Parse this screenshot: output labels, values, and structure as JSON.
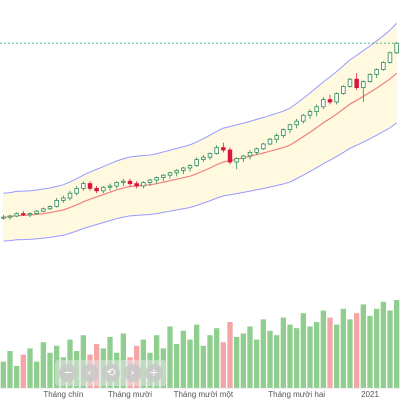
{
  "chart_data": {
    "type": "candlestick",
    "x_tick_labels": [
      "Tháng chín",
      "Tháng mười",
      "Tháng mười một",
      "Tháng mười hai",
      "2021"
    ],
    "series": [
      {
        "ohlc": [
          [
            0,
            22,
            23,
            21,
            22
          ],
          [
            1,
            22,
            23,
            21,
            22.5
          ],
          [
            2,
            22.5,
            24,
            22,
            23.5
          ],
          [
            3,
            23.5,
            24.5,
            22.5,
            23
          ],
          [
            4,
            23,
            24,
            22,
            23.5
          ],
          [
            5,
            23.5,
            25,
            23,
            24.5
          ],
          [
            6,
            24.5,
            26,
            24,
            25.5
          ],
          [
            7,
            25.5,
            27,
            25,
            26.5
          ],
          [
            8,
            26.5,
            30,
            26,
            29
          ],
          [
            9,
            29,
            31,
            28,
            30
          ],
          [
            10,
            30,
            33,
            29,
            32
          ],
          [
            11,
            32,
            35,
            31,
            34
          ],
          [
            12,
            34,
            37,
            33,
            36
          ],
          [
            13,
            36,
            37,
            33,
            34
          ],
          [
            14,
            34,
            35,
            32,
            33
          ],
          [
            15,
            33,
            35,
            32,
            34.5
          ],
          [
            16,
            34.5,
            36,
            33,
            35
          ],
          [
            17,
            35,
            37,
            34,
            36.5
          ],
          [
            18,
            36.5,
            38,
            35,
            37
          ],
          [
            19,
            37,
            38,
            35,
            36
          ],
          [
            20,
            36,
            37,
            34,
            35
          ],
          [
            21,
            35,
            37,
            34,
            36.5
          ],
          [
            22,
            36.5,
            38,
            35,
            37.5
          ],
          [
            23,
            37.5,
            39,
            36,
            38.5
          ],
          [
            24,
            38.5,
            40,
            37,
            39.5
          ],
          [
            25,
            39.5,
            41,
            38,
            40.5
          ],
          [
            26,
            40.5,
            42,
            39,
            41.5
          ],
          [
            27,
            41.5,
            43,
            40,
            42.5
          ],
          [
            28,
            42.5,
            44,
            41,
            43.5
          ],
          [
            29,
            43.5,
            47,
            43,
            46
          ],
          [
            30,
            46,
            48,
            45,
            47
          ],
          [
            31,
            47,
            49,
            46,
            48.5
          ],
          [
            32,
            48.5,
            52,
            48,
            51
          ],
          [
            33,
            51,
            53,
            49,
            50
          ],
          [
            34,
            50,
            51,
            44,
            45
          ],
          [
            35,
            45,
            47,
            42,
            46.5
          ],
          [
            36,
            46.5,
            48,
            45,
            47.5
          ],
          [
            37,
            47.5,
            50,
            46,
            49
          ],
          [
            38,
            49,
            51,
            48,
            50.5
          ],
          [
            39,
            50.5,
            53,
            50,
            52.5
          ],
          [
            40,
            52.5,
            55,
            52,
            54.5
          ],
          [
            41,
            54.5,
            57,
            53,
            56
          ],
          [
            42,
            56,
            59,
            55,
            58.5
          ],
          [
            43,
            58.5,
            61,
            57,
            60.5
          ],
          [
            44,
            60.5,
            63,
            59,
            62
          ],
          [
            45,
            62,
            65,
            61,
            64.5
          ],
          [
            46,
            64.5,
            67,
            63,
            66
          ],
          [
            47,
            66,
            69,
            64,
            68
          ],
          [
            48,
            68,
            72,
            67,
            71
          ],
          [
            49,
            71,
            73,
            69,
            70
          ],
          [
            50,
            70,
            74,
            69,
            73.5
          ],
          [
            51,
            73.5,
            77,
            73,
            76.5
          ],
          [
            52,
            76.5,
            80,
            76,
            79.5
          ],
          [
            53,
            79.5,
            82,
            75,
            76
          ],
          [
            54,
            76,
            79,
            70,
            78.5
          ],
          [
            55,
            78.5,
            82,
            78,
            81.5
          ],
          [
            56,
            81.5,
            84,
            80,
            83.5
          ],
          [
            57,
            83.5,
            87,
            83,
            86.5
          ],
          [
            58,
            86.5,
            91,
            86,
            90.5
          ],
          [
            59,
            90.5,
            95,
            90,
            94.5
          ]
        ],
        "volume": [
          30,
          42,
          25,
          38,
          45,
          30,
          52,
          40,
          48,
          35,
          55,
          42,
          60,
          38,
          50,
          45,
          58,
          40,
          62,
          35,
          48,
          55,
          40,
          60,
          45,
          70,
          50,
          65,
          55,
          72,
          48,
          60,
          68,
          52,
          75,
          58,
          62,
          70,
          55,
          78,
          65,
          60,
          80,
          72,
          68,
          85,
          70,
          75,
          88,
          80,
          72,
          90,
          78,
          85,
          95,
          82,
          90,
          98,
          88,
          100
        ]
      }
    ],
    "colors": {
      "up": "#2e8b57",
      "down": "#dc143c",
      "ma": "#f08080",
      "band_fill": "#fff9e0",
      "band_line": "#9999ff",
      "vol_up": "#8fce8f",
      "vol_down": "#f4a6a6",
      "guide": "#3cb371"
    }
  },
  "zoom_controls": [
    {
      "name": "zoom-out",
      "glyph": "−"
    },
    {
      "name": "scroll-left",
      "glyph": "‹"
    },
    {
      "name": "reset",
      "glyph": "⟲"
    },
    {
      "name": "scroll-right",
      "glyph": "›"
    },
    {
      "name": "zoom-in",
      "glyph": "+"
    }
  ]
}
